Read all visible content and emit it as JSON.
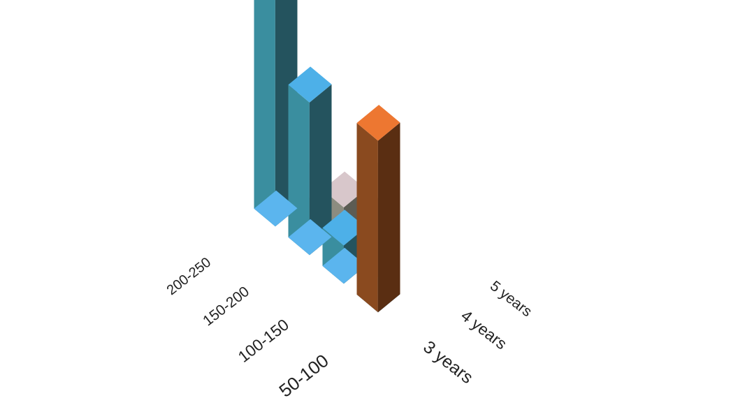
{
  "chart_data": {
    "type": "bar",
    "title": "",
    "categories": [
      "50-100",
      "100-150",
      "150-200",
      "200-250"
    ],
    "series": [
      {
        "name": "3 years",
        "values": [
          9,
          0,
          0,
          0
        ]
      },
      {
        "name": "4 years",
        "values": [
          0,
          2,
          8,
          12
        ]
      },
      {
        "name": "5 years",
        "values": [
          6,
          4,
          3,
          0
        ]
      }
    ],
    "colors": {
      "3 years": {
        "top": "#ED7731",
        "front": "#8A4A1F",
        "side": "#5A2E12"
      },
      "4 years": {
        "top": "#4DB0E8",
        "front": "#3A8E9F",
        "side": "#24535E"
      },
      "5 years": {
        "top": "#D8C7CB",
        "front": "#8C8C80",
        "side": "#5C5C54"
      }
    },
    "zero_value_tile": "#5BB5EE",
    "ylim": [
      0,
      12
    ]
  }
}
